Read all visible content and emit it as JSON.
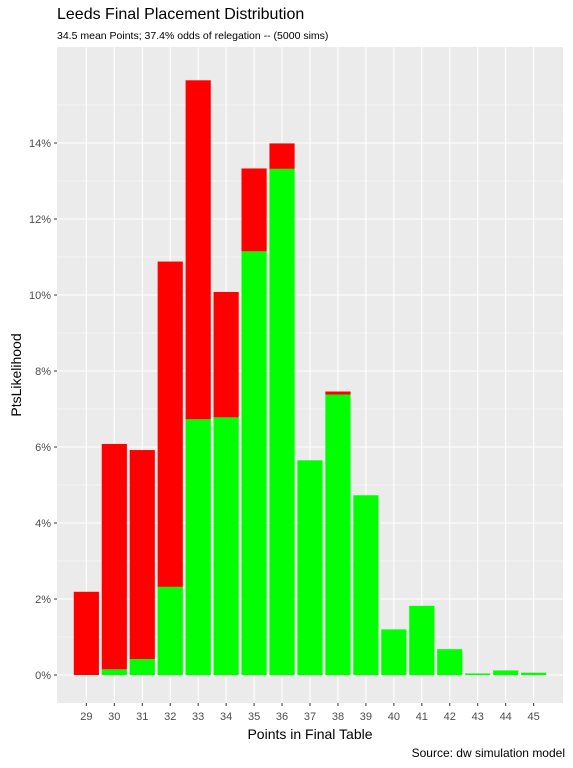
{
  "title": "Leeds Final Placement Distribution",
  "subtitle": "34.5 mean Points; 37.4% odds of relegation -- (5000 sims)",
  "caption": "Source:  dw simulation model",
  "colors": {
    "panel_background": "#EBEBEB",
    "grid": "#FFFFFF",
    "relegated": "#FF0000",
    "safe": "#00FF00"
  },
  "chart_data": {
    "type": "bar",
    "stacked": true,
    "title": "Leeds Final Placement Distribution",
    "subtitle": "34.5 mean Points; 37.4% odds of relegation -- (5000 sims)",
    "xlabel": "Points in Final Table",
    "ylabel": "PtsLikelihood",
    "categories": [
      "29",
      "30",
      "31",
      "32",
      "33",
      "34",
      "35",
      "36",
      "37",
      "38",
      "39",
      "40",
      "41",
      "42",
      "43",
      "44",
      "45"
    ],
    "ylim": [
      0,
      0.165
    ],
    "y_ticks": [
      0,
      0.02,
      0.04,
      0.06,
      0.08,
      0.1,
      0.12,
      0.14
    ],
    "y_tick_labels": [
      "0%",
      "2%",
      "4%",
      "6%",
      "8%",
      "10%",
      "12%",
      "14%"
    ],
    "grid": true,
    "legend": "none",
    "series": [
      {
        "color": "#00FF00",
        "values": [
          0.0,
          0.0015,
          0.0042,
          0.0232,
          0.0673,
          0.0678,
          0.1115,
          0.1332,
          0.0565,
          0.0738,
          0.0473,
          0.012,
          0.0182,
          0.0068,
          0.0004,
          0.0012,
          0.0006
        ]
      },
      {
        "color": "#FF0000",
        "values": [
          0.0219,
          0.0593,
          0.055,
          0.0856,
          0.0892,
          0.033,
          0.0218,
          0.0067,
          0.0,
          0.0008,
          0.0,
          0.0,
          0.0,
          0.0,
          0.0,
          0.0,
          0.0
        ]
      }
    ]
  }
}
